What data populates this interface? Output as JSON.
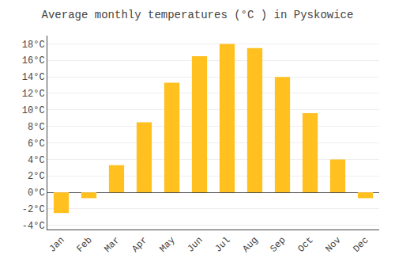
{
  "chart_data": {
    "type": "bar",
    "title": "Average monthly temperatures (°C ) in Pyskowice",
    "categories": [
      "Jan",
      "Feb",
      "Mar",
      "Apr",
      "May",
      "Jun",
      "Jul",
      "Aug",
      "Sep",
      "Oct",
      "Nov",
      "Dec"
    ],
    "values": [
      -2.5,
      -0.7,
      3.3,
      8.5,
      13.3,
      16.5,
      18.0,
      17.5,
      14.0,
      9.6,
      4.0,
      -0.7
    ],
    "color": "#FFC020",
    "ylim": [
      -4.5,
      19.0
    ],
    "yticks": [
      {
        "value": -4,
        "label": "-4°C"
      },
      {
        "value": -2,
        "label": "-2°C"
      },
      {
        "value": 0,
        "label": "0°C"
      },
      {
        "value": 2,
        "label": "2°C"
      },
      {
        "value": 4,
        "label": "4°C"
      },
      {
        "value": 6,
        "label": "6°C"
      },
      {
        "value": 8,
        "label": "8°C"
      },
      {
        "value": 10,
        "label": "10°C"
      },
      {
        "value": 12,
        "label": "12°C"
      },
      {
        "value": 14,
        "label": "14°C"
      },
      {
        "value": 16,
        "label": "16°C"
      },
      {
        "value": 18,
        "label": "18°C"
      }
    ],
    "grid": true
  }
}
